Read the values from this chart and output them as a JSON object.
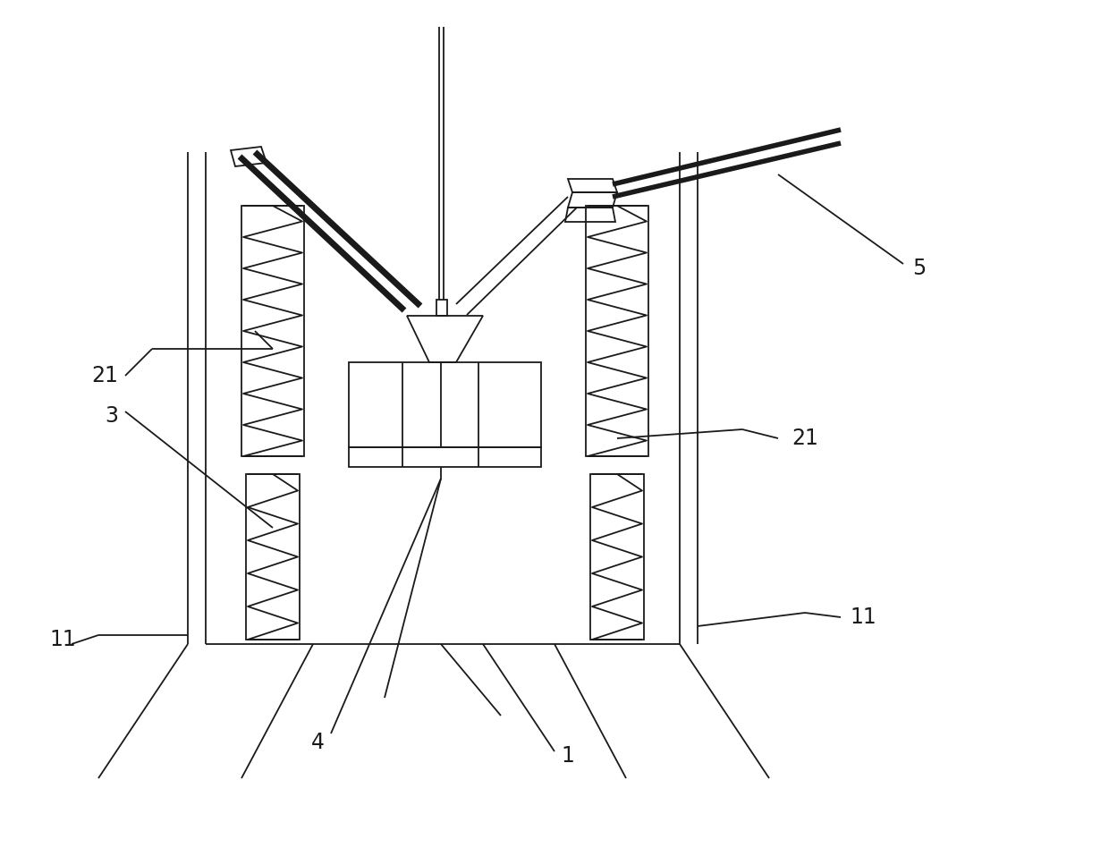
{
  "bg_color": "#ffffff",
  "line_color": "#1a1a1a",
  "lw": 1.3,
  "fig_width": 12.4,
  "fig_height": 9.48,
  "labels": {
    "21_left": "21",
    "3": "3",
    "11_left": "11",
    "4": "4",
    "1": "1",
    "21_right": "21",
    "11_right": "11",
    "5": "5"
  },
  "fontsize": 17
}
